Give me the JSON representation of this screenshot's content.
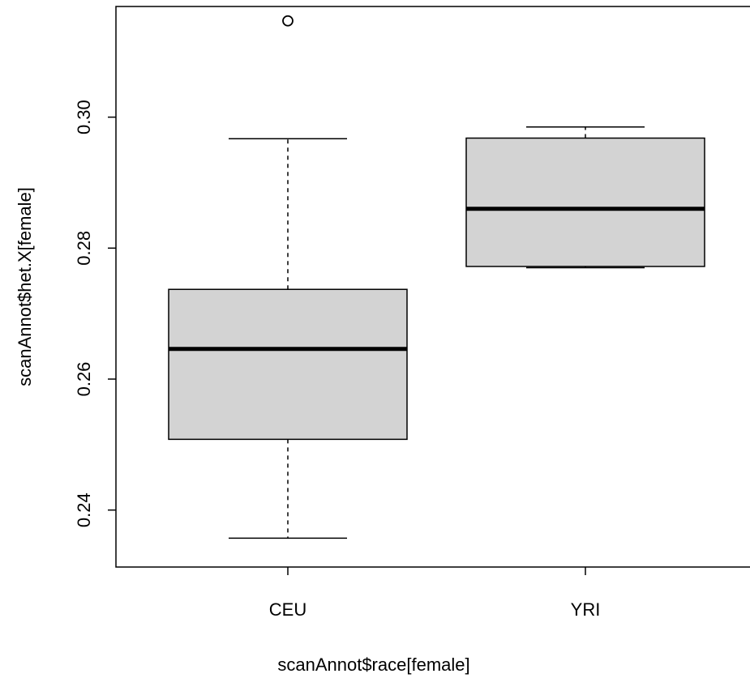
{
  "chart_data": {
    "type": "box",
    "xlabel": "scanAnnot$race[female]",
    "ylabel": "scanAnnot$het.X[female]",
    "ylim": [
      0.2313,
      0.3169
    ],
    "yticks": [
      0.24,
      0.26,
      0.28,
      0.3
    ],
    "ytick_labels": [
      "0.24",
      "0.26",
      "0.28",
      "0.30"
    ],
    "categories": [
      "CEU",
      "YRI"
    ],
    "boxes": [
      {
        "category": "CEU",
        "whisker_low": 0.2357,
        "q1": 0.2508,
        "median": 0.2646,
        "q3": 0.2737,
        "whisker_high": 0.2967,
        "outliers": [
          0.3147
        ]
      },
      {
        "category": "YRI",
        "whisker_low": 0.277,
        "q1": 0.2772,
        "median": 0.286,
        "q3": 0.2968,
        "whisker_high": 0.2985,
        "outliers": []
      }
    ],
    "box_fill": "#d3d3d3",
    "line_color": "#000000",
    "grid": false,
    "legend": "none"
  }
}
